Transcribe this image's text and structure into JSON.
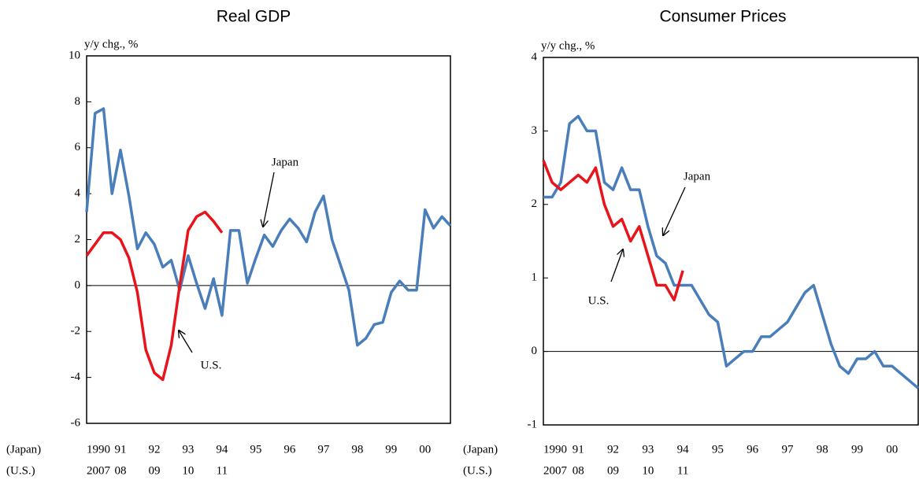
{
  "chart_data": [
    {
      "type": "line",
      "title": "Real GDP",
      "y_label": "y/y chg., %",
      "row_labels": [
        "(Japan)",
        "(U.S.)"
      ],
      "xlim": [
        1990,
        2000.75
      ],
      "xticks": [
        {
          "value": 1990,
          "label": "1990"
        },
        {
          "value": 1991,
          "label": "91"
        },
        {
          "value": 1992,
          "label": "92"
        },
        {
          "value": 1993,
          "label": "93"
        },
        {
          "value": 1994,
          "label": "94"
        },
        {
          "value": 1995,
          "label": "95"
        },
        {
          "value": 1996,
          "label": "96"
        },
        {
          "value": 1997,
          "label": "97"
        },
        {
          "value": 1998,
          "label": "98"
        },
        {
          "value": 1999,
          "label": "99"
        },
        {
          "value": 2000,
          "label": "00"
        }
      ],
      "xticks_us": [
        {
          "value": 1990,
          "label": "2007"
        },
        {
          "value": 1991,
          "label": "08"
        },
        {
          "value": 1992,
          "label": "09"
        },
        {
          "value": 1993,
          "label": "10"
        },
        {
          "value": 1994,
          "label": "11"
        }
      ],
      "ylim": [
        -6,
        10
      ],
      "yticks": [
        -6,
        -4,
        -2,
        0,
        2,
        4,
        6,
        8,
        10
      ],
      "annotations": [
        "Japan",
        "U.S."
      ],
      "series": [
        {
          "name": "Japan",
          "color": "#4a7ebb",
          "x": [
            1990,
            1990.25,
            1990.5,
            1990.75,
            1991,
            1991.25,
            1991.5,
            1991.75,
            1992,
            1992.25,
            1992.5,
            1992.75,
            1993,
            1993.25,
            1993.5,
            1993.75,
            1994,
            1994.25,
            1994.5,
            1994.75,
            1995,
            1995.25,
            1995.5,
            1995.75,
            1996,
            1996.25,
            1996.5,
            1996.75,
            1997,
            1997.25,
            1997.5,
            1997.75,
            1998,
            1998.25,
            1998.5,
            1998.75,
            1999,
            1999.25,
            1999.5,
            1999.75,
            2000,
            2000.25,
            2000.5,
            2000.75
          ],
          "values": [
            3.2,
            7.5,
            7.7,
            4.0,
            5.9,
            3.9,
            1.6,
            2.3,
            1.8,
            0.8,
            1.1,
            -0.2,
            1.3,
            0.1,
            -1.0,
            0.3,
            -1.3,
            2.4,
            2.4,
            0.1,
            1.2,
            2.2,
            1.7,
            2.4,
            2.9,
            2.5,
            1.9,
            3.2,
            3.9,
            2.0,
            0.9,
            -0.2,
            -2.6,
            -2.3,
            -1.7,
            -1.6,
            -0.3,
            0.2,
            -0.2,
            -0.2,
            3.3,
            2.5,
            3.0,
            2.6
          ]
        },
        {
          "name": "U.S.",
          "color": "#e8141b",
          "x": [
            1990,
            1990.25,
            1990.5,
            1990.75,
            1991,
            1991.25,
            1991.5,
            1991.75,
            1992,
            1992.25,
            1992.5,
            1992.75,
            1993,
            1993.25,
            1993.5,
            1993.75,
            1994
          ],
          "values": [
            1.3,
            1.8,
            2.3,
            2.3,
            2.0,
            1.2,
            -0.3,
            -2.8,
            -3.8,
            -4.1,
            -2.6,
            0.0,
            2.4,
            3.0,
            3.2,
            2.8,
            2.3
          ]
        }
      ]
    },
    {
      "type": "line",
      "title": "Consumer Prices",
      "y_label": "y/y chg., %",
      "row_labels": [
        "(Japan)",
        "(U.S.)"
      ],
      "xlim": [
        1990,
        2000.75
      ],
      "xticks": [
        {
          "value": 1990,
          "label": "1990"
        },
        {
          "value": 1991,
          "label": "91"
        },
        {
          "value": 1992,
          "label": "92"
        },
        {
          "value": 1993,
          "label": "93"
        },
        {
          "value": 1994,
          "label": "94"
        },
        {
          "value": 1995,
          "label": "95"
        },
        {
          "value": 1996,
          "label": "96"
        },
        {
          "value": 1997,
          "label": "97"
        },
        {
          "value": 1998,
          "label": "98"
        },
        {
          "value": 1999,
          "label": "99"
        },
        {
          "value": 2000,
          "label": "00"
        }
      ],
      "xticks_us": [
        {
          "value": 1990,
          "label": "2007"
        },
        {
          "value": 1991,
          "label": "08"
        },
        {
          "value": 1992,
          "label": "09"
        },
        {
          "value": 1993,
          "label": "10"
        },
        {
          "value": 1994,
          "label": "11"
        }
      ],
      "ylim": [
        -1,
        4
      ],
      "yticks": [
        -1,
        0,
        1,
        2,
        3,
        4
      ],
      "annotations": [
        "Japan",
        "U.S."
      ],
      "series": [
        {
          "name": "Japan",
          "color": "#4a7ebb",
          "x": [
            1990,
            1990.25,
            1990.5,
            1990.75,
            1991,
            1991.25,
            1991.5,
            1991.75,
            1992,
            1992.25,
            1992.5,
            1992.75,
            1993,
            1993.25,
            1993.5,
            1993.75,
            1994,
            1994.25,
            1994.5,
            1994.75,
            1995,
            1995.25,
            1995.5,
            1995.75,
            1996,
            1996.25,
            1996.5,
            1996.75,
            1997,
            1997.25,
            1997.5,
            1997.75,
            1998,
            1998.25,
            1998.5,
            1998.75,
            1999,
            1999.25,
            1999.5,
            1999.75,
            2000,
            2000.25,
            2000.5,
            2000.75
          ],
          "values": [
            2.1,
            2.1,
            2.3,
            3.1,
            3.2,
            3.0,
            3.0,
            2.3,
            2.2,
            2.5,
            2.2,
            2.2,
            1.7,
            1.3,
            1.2,
            0.9,
            0.9,
            0.9,
            0.7,
            0.5,
            0.4,
            -0.2,
            -0.1,
            0.0,
            0.0,
            0.2,
            0.2,
            0.3,
            0.4,
            0.6,
            0.8,
            0.9,
            0.5,
            0.1,
            -0.2,
            -0.3,
            -0.1,
            -0.1,
            0.0,
            -0.2,
            -0.2,
            -0.3,
            -0.4,
            -0.5
          ]
        },
        {
          "name": "U.S.",
          "color": "#e8141b",
          "x": [
            1990,
            1990.25,
            1990.5,
            1990.75,
            1991,
            1991.25,
            1991.5,
            1991.75,
            1992,
            1992.25,
            1992.5,
            1992.75,
            1993,
            1993.25,
            1993.5,
            1993.75,
            1994
          ],
          "values": [
            2.6,
            2.3,
            2.2,
            2.3,
            2.4,
            2.3,
            2.5,
            2.0,
            1.7,
            1.8,
            1.5,
            1.7,
            1.3,
            0.9,
            0.9,
            0.7,
            1.1
          ]
        }
      ]
    }
  ]
}
